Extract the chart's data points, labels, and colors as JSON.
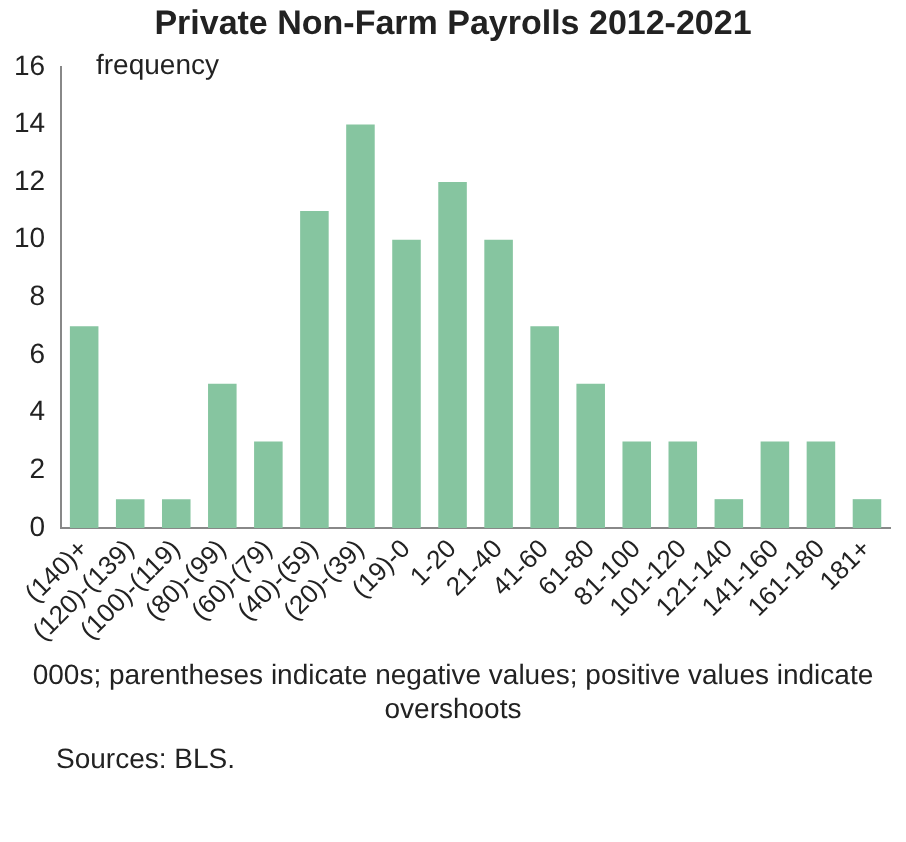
{
  "chart_data": {
    "type": "bar",
    "title": "Private Non-Farm Payrolls 2012-2021",
    "ylabel": "frequency",
    "xlabel": "000s; parentheses indicate negative values; positive values indicate overshoots",
    "annotations": [
      "Sources: BLS."
    ],
    "categories": [
      "(140)+",
      "(120)-(139)",
      "(100)-(119)",
      "(80)-(99)",
      "(60)-(79)",
      "(40)-(59)",
      "(20)-(39)",
      "(19)-0",
      "1-20",
      "21-40",
      "41-60",
      "61-80",
      "81-100",
      "101-120",
      "121-140",
      "141-160",
      "161-180",
      "181+"
    ],
    "values": [
      7,
      1,
      1,
      5,
      3,
      11,
      14,
      10,
      12,
      10,
      7,
      5,
      3,
      3,
      1,
      3,
      3,
      1
    ],
    "color": "#86c5a0",
    "ylim": [
      0,
      16
    ],
    "yticks": [
      0,
      2,
      4,
      6,
      8,
      10,
      12,
      14,
      16
    ],
    "grid": false,
    "legend": false
  }
}
